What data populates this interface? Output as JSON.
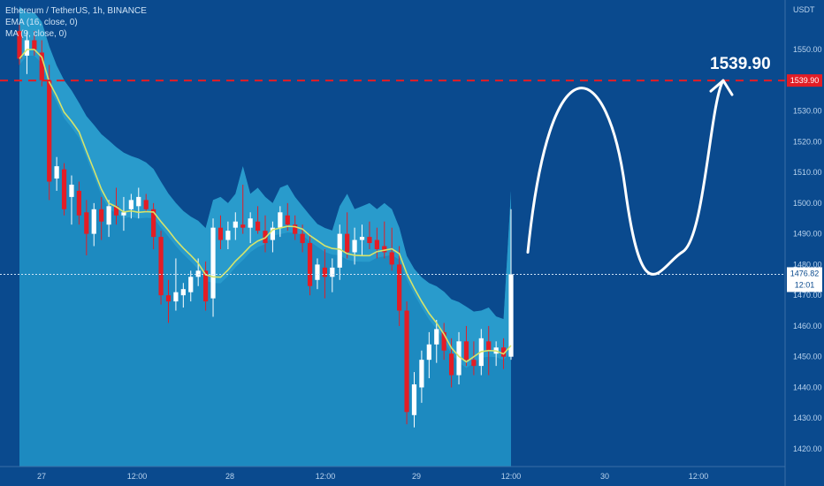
{
  "legend": {
    "symbol": "Ethereum / TetherUS, 1h, BINANCE",
    "ema": "EMA (16, close, 0)",
    "ma": "MA (9, close, 0)"
  },
  "axis": {
    "unit": "USDT",
    "y_ticks": [
      "1550.00",
      "1540.00",
      "1530.00",
      "1520.00",
      "1510.00",
      "1500.00",
      "1490.00",
      "1480.00",
      "1470.00",
      "1460.00",
      "1450.00",
      "1440.00",
      "1430.00",
      "1420.00"
    ],
    "x_ticks": [
      "27",
      "12:00",
      "28",
      "12:00",
      "29",
      "12:00",
      "30",
      "12:00"
    ]
  },
  "annotation": {
    "target_text": "1539.90",
    "target_tag": "1539.90",
    "current_price_tag": "1476.82",
    "countdown_tag": "12:01"
  },
  "colors": {
    "background": "#0a4a8e",
    "shaded_area": "#1d8ac0",
    "band": "#2ea0d0",
    "up_candle": "#ffffff",
    "down_candle": "#e31d25",
    "ma_line": "#d6e46a",
    "target_line": "#e31d25",
    "arrow": "#ffffff"
  },
  "chart_data": {
    "type": "candlestick",
    "symbol": "Ethereum / TetherUS",
    "interval": "1h",
    "exchange": "BINANCE",
    "ylim": [
      1417,
      1556
    ],
    "target_level": 1539.9,
    "current_price": 1476.82,
    "ohlc": [
      [
        1556,
        1558,
        1545,
        1547
      ],
      [
        1548,
        1556,
        1542,
        1553
      ],
      [
        1553,
        1556,
        1548,
        1550
      ],
      [
        1549,
        1553,
        1538,
        1540
      ],
      [
        1540,
        1545,
        1501,
        1507
      ],
      [
        1508,
        1515,
        1504,
        1512
      ],
      [
        1511,
        1513,
        1496,
        1498
      ],
      [
        1502,
        1509,
        1493,
        1506
      ],
      [
        1504,
        1507,
        1493,
        1496
      ],
      [
        1497,
        1501,
        1483,
        1490
      ],
      [
        1490,
        1500,
        1486,
        1498
      ],
      [
        1498,
        1502,
        1488,
        1494
      ],
      [
        1493,
        1501,
        1489,
        1499
      ],
      [
        1499,
        1505,
        1493,
        1496
      ],
      [
        1496,
        1502,
        1491,
        1497
      ],
      [
        1498,
        1503,
        1495,
        1501
      ],
      [
        1499,
        1505,
        1495,
        1502
      ],
      [
        1501,
        1503,
        1497,
        1498
      ],
      [
        1498,
        1500,
        1485,
        1489
      ],
      [
        1489,
        1491,
        1467,
        1470
      ],
      [
        1470,
        1475,
        1461,
        1468
      ],
      [
        1468,
        1482,
        1465,
        1471
      ],
      [
        1470,
        1474,
        1466,
        1472
      ],
      [
        1471,
        1478,
        1468,
        1476
      ],
      [
        1476,
        1482,
        1473,
        1478
      ],
      [
        1478,
        1481,
        1465,
        1468
      ],
      [
        1469,
        1495,
        1463,
        1492
      ],
      [
        1492,
        1496,
        1485,
        1488
      ],
      [
        1488,
        1494,
        1485,
        1491
      ],
      [
        1492,
        1497,
        1488,
        1494
      ],
      [
        1493,
        1506,
        1490,
        1492
      ],
      [
        1492,
        1497,
        1487,
        1495
      ],
      [
        1494,
        1499,
        1490,
        1491
      ],
      [
        1491,
        1496,
        1484,
        1487
      ],
      [
        1488,
        1494,
        1484,
        1492
      ],
      [
        1492,
        1499,
        1489,
        1497
      ],
      [
        1496,
        1500,
        1491,
        1493
      ],
      [
        1493,
        1496,
        1488,
        1490
      ],
      [
        1490,
        1493,
        1484,
        1487
      ],
      [
        1487,
        1490,
        1470,
        1473
      ],
      [
        1475,
        1482,
        1472,
        1480
      ],
      [
        1479,
        1485,
        1469,
        1476
      ],
      [
        1476,
        1482,
        1471,
        1479
      ],
      [
        1479,
        1493,
        1475,
        1490
      ],
      [
        1490,
        1497,
        1482,
        1484
      ],
      [
        1484,
        1492,
        1480,
        1488
      ],
      [
        1488,
        1493,
        1483,
        1489
      ],
      [
        1489,
        1494,
        1485,
        1487
      ],
      [
        1488,
        1492,
        1482,
        1485
      ],
      [
        1486,
        1494,
        1482,
        1484
      ],
      [
        1484,
        1492,
        1478,
        1480
      ],
      [
        1480,
        1486,
        1460,
        1465
      ],
      [
        1465,
        1468,
        1428,
        1432
      ],
      [
        1431,
        1445,
        1427,
        1441
      ],
      [
        1440,
        1452,
        1435,
        1449
      ],
      [
        1449,
        1458,
        1443,
        1454
      ],
      [
        1454,
        1462,
        1448,
        1459
      ],
      [
        1458,
        1461,
        1449,
        1452
      ],
      [
        1451,
        1456,
        1440,
        1444
      ],
      [
        1444,
        1458,
        1441,
        1455
      ],
      [
        1455,
        1460,
        1447,
        1449
      ],
      [
        1449,
        1455,
        1444,
        1447
      ],
      [
        1447,
        1459,
        1444,
        1456
      ],
      [
        1455,
        1460,
        1444,
        1452
      ],
      [
        1451,
        1455,
        1447,
        1453
      ],
      [
        1453,
        1456,
        1446,
        1450
      ],
      [
        1450,
        1498,
        1449,
        1476.82
      ]
    ],
    "forecast_path": [
      [
        1484,
        1535,
        1487,
        1539.9
      ]
    ]
  }
}
